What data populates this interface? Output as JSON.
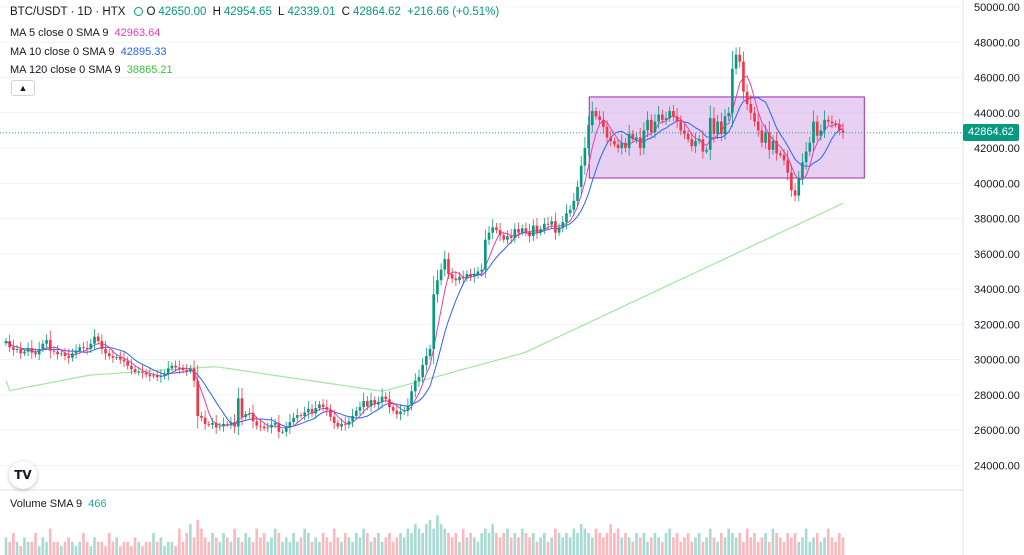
{
  "header": {
    "symbol": "BTC/USDT · 1D · HTX",
    "ohlc": {
      "o_label": "O",
      "o": "42650.00",
      "h_label": "H",
      "h": "42954.65",
      "l_label": "L",
      "l": "42339.01",
      "c_label": "C",
      "c": "42864.62",
      "change": "+216.66 (+0.51%)"
    }
  },
  "indicators": [
    {
      "label": "MA 5 close 0 SMA 9",
      "value": "42963.64",
      "color": "#e040b8"
    },
    {
      "label": "MA 10 close 0 SMA 9",
      "value": "42895.33",
      "color": "#2962ff"
    },
    {
      "label": "MA 120 close 0 SMA 9",
      "value": "38865.21",
      "color": "#3cc13c"
    }
  ],
  "volume_legend": {
    "label": "Volume SMA 9",
    "value": "466"
  },
  "last_price_tag": "42864.62",
  "logo_text": "TV",
  "colors": {
    "up": "#089981",
    "down": "#f23645",
    "box_fill": "#d6a9ea",
    "box_stroke": "#9c27b0",
    "ma120": "#9ee89e"
  },
  "icons": {
    "collapse": "chevron-up-icon"
  },
  "chart_data": {
    "type": "candlestick",
    "interval": "1D",
    "y_axis": {
      "side": "right",
      "ticks": [
        "50000.00",
        "48000.00",
        "46000.00",
        "44000.00",
        "42000.00",
        "40000.00",
        "38000.00",
        "36000.00",
        "34000.00",
        "32000.00",
        "30000.00",
        "28000.00",
        "26000.00",
        "24000.00"
      ],
      "ylim": [
        22600,
        50400
      ]
    },
    "closes": [
      31050,
      30700,
      30550,
      30600,
      30350,
      30450,
      30650,
      30400,
      30300,
      30600,
      30900,
      31100,
      30500,
      30450,
      30300,
      30350,
      30200,
      30100,
      30350,
      30500,
      30700,
      30650,
      30600,
      30900,
      31300,
      31050,
      30600,
      30350,
      30200,
      30100,
      30150,
      30000,
      29900,
      29650,
      29450,
      29300,
      29300,
      29250,
      29150,
      29050,
      29100,
      29000,
      29050,
      29150,
      29500,
      29650,
      29550,
      29500,
      29400,
      29350,
      29500,
      28800,
      26800,
      26700,
      26350,
      26300,
      26400,
      26150,
      26200,
      26350,
      26300,
      26450,
      26200,
      27800,
      26750,
      26900,
      26950,
      26500,
      26250,
      26200,
      26100,
      26150,
      26300,
      26400,
      25900,
      25900,
      26150,
      26450,
      26700,
      26850,
      26800,
      27000,
      27200,
      26950,
      27250,
      27450,
      27300,
      27150,
      26750,
      26400,
      26200,
      26350,
      26300,
      26500,
      26800,
      27100,
      27300,
      27650,
      27350,
      27700,
      27450,
      27600,
      27900,
      27750,
      27300,
      27100,
      26900,
      27050,
      27100,
      27400,
      28200,
      28800,
      29000,
      29700,
      30200,
      30600,
      33700,
      34500,
      35100,
      35700,
      34850,
      34600,
      34500,
      34700,
      34600,
      34850,
      34700,
      34800,
      35000,
      35100,
      36800,
      37200,
      37500,
      37350,
      37050,
      36800,
      37000,
      36900,
      37400,
      37200,
      37450,
      37250,
      37000,
      37600,
      37200,
      37400,
      37700,
      37650,
      37850,
      37200,
      37500,
      37800,
      38300,
      38500,
      39000,
      39800,
      41000,
      42000,
      43300,
      44100,
      43800,
      43600,
      43200,
      42600,
      42400,
      42200,
      42000,
      42300,
      42000,
      42800,
      42500,
      42600,
      42000,
      43000,
      43600,
      42900,
      43500,
      43900,
      43600,
      43700,
      44100,
      43800,
      43500,
      43000,
      42800,
      42500,
      42100,
      42400,
      42500,
      41800,
      41900,
      43700,
      42800,
      43500,
      42800,
      43800,
      44000,
      46500,
      47300,
      46900,
      45200,
      44500,
      44000,
      43500,
      43000,
      42300,
      42900,
      41900,
      42400,
      41700,
      41600,
      41300,
      40600,
      39600,
      39300,
      40300,
      41200,
      41800,
      42300,
      43500,
      42700,
      43000,
      43600,
      43500,
      43400,
      43300,
      43000,
      42864
    ],
    "volumes_relative": [
      0.4,
      0.3,
      0.5,
      0.3,
      0.2,
      0.4,
      0.3,
      0.3,
      0.5,
      0.2,
      0.4,
      0.3,
      0.6,
      0.3,
      0.3,
      0.2,
      0.3,
      0.4,
      0.3,
      0.2,
      0.3,
      0.5,
      0.3,
      0.2,
      0.4,
      0.3,
      0.3,
      0.2,
      0.5,
      0.3,
      0.4,
      0.2,
      0.3,
      0.3,
      0.2,
      0.4,
      0.3,
      0.2,
      0.3,
      0.3,
      0.5,
      0.3,
      0.4,
      0.2,
      0.3,
      0.3,
      0.2,
      0.6,
      0.3,
      0.5,
      0.7,
      0.4,
      0.8,
      0.6,
      0.4,
      0.3,
      0.5,
      0.4,
      0.3,
      0.5,
      0.4,
      0.3,
      0.6,
      0.4,
      0.3,
      0.5,
      0.4,
      0.3,
      0.6,
      0.4,
      0.5,
      0.3,
      0.4,
      0.6,
      0.5,
      0.3,
      0.4,
      0.3,
      0.5,
      0.3,
      0.4,
      0.6,
      0.5,
      0.3,
      0.4,
      0.3,
      0.5,
      0.4,
      0.3,
      0.6,
      0.4,
      0.3,
      0.5,
      0.4,
      0.3,
      0.5,
      0.4,
      0.6,
      0.5,
      0.3,
      0.4,
      0.5,
      0.3,
      0.4,
      0.5,
      0.3,
      0.4,
      0.5,
      0.4,
      0.6,
      0.5,
      0.7,
      0.6,
      0.5,
      0.7,
      0.8,
      0.6,
      0.9,
      0.7,
      0.6,
      0.5,
      0.4,
      0.5,
      0.3,
      0.6,
      0.4,
      0.5,
      0.4,
      0.3,
      0.5,
      0.6,
      0.5,
      0.7,
      0.5,
      0.4,
      0.5,
      0.6,
      0.4,
      0.5,
      0.4,
      0.6,
      0.5,
      0.4,
      0.5,
      0.3,
      0.4,
      0.5,
      0.3,
      0.4,
      0.6,
      0.5,
      0.4,
      0.5,
      0.4,
      0.6,
      0.5,
      0.7,
      0.6,
      0.5,
      0.4,
      0.6,
      0.5,
      0.4,
      0.5,
      0.7,
      0.5,
      0.6,
      0.4,
      0.5,
      0.4,
      0.3,
      0.5,
      0.4,
      0.5,
      0.3,
      0.4,
      0.5,
      0.4,
      0.3,
      0.5,
      0.6,
      0.4,
      0.5,
      0.3,
      0.4,
      0.5,
      0.3,
      0.4,
      0.5,
      0.3,
      0.4,
      0.6,
      0.4,
      0.3,
      0.5,
      0.4,
      0.6,
      0.5,
      0.4,
      0.5,
      0.3,
      0.6,
      0.4,
      0.5,
      0.3,
      0.4,
      0.5,
      0.3,
      0.6,
      0.5,
      0.4,
      0.3,
      0.5,
      0.4,
      0.5,
      0.3,
      0.4,
      0.6,
      0.3,
      0.4,
      0.5,
      0.3,
      0.4,
      0.6,
      0.4,
      0.3,
      0.5,
      0.4
    ],
    "range_box": {
      "price_low": 40300,
      "price_high": 44900,
      "start_index": 159,
      "end_index": 226
    },
    "last_price": 42864.62,
    "ma120_anchor": 38865.21
  }
}
